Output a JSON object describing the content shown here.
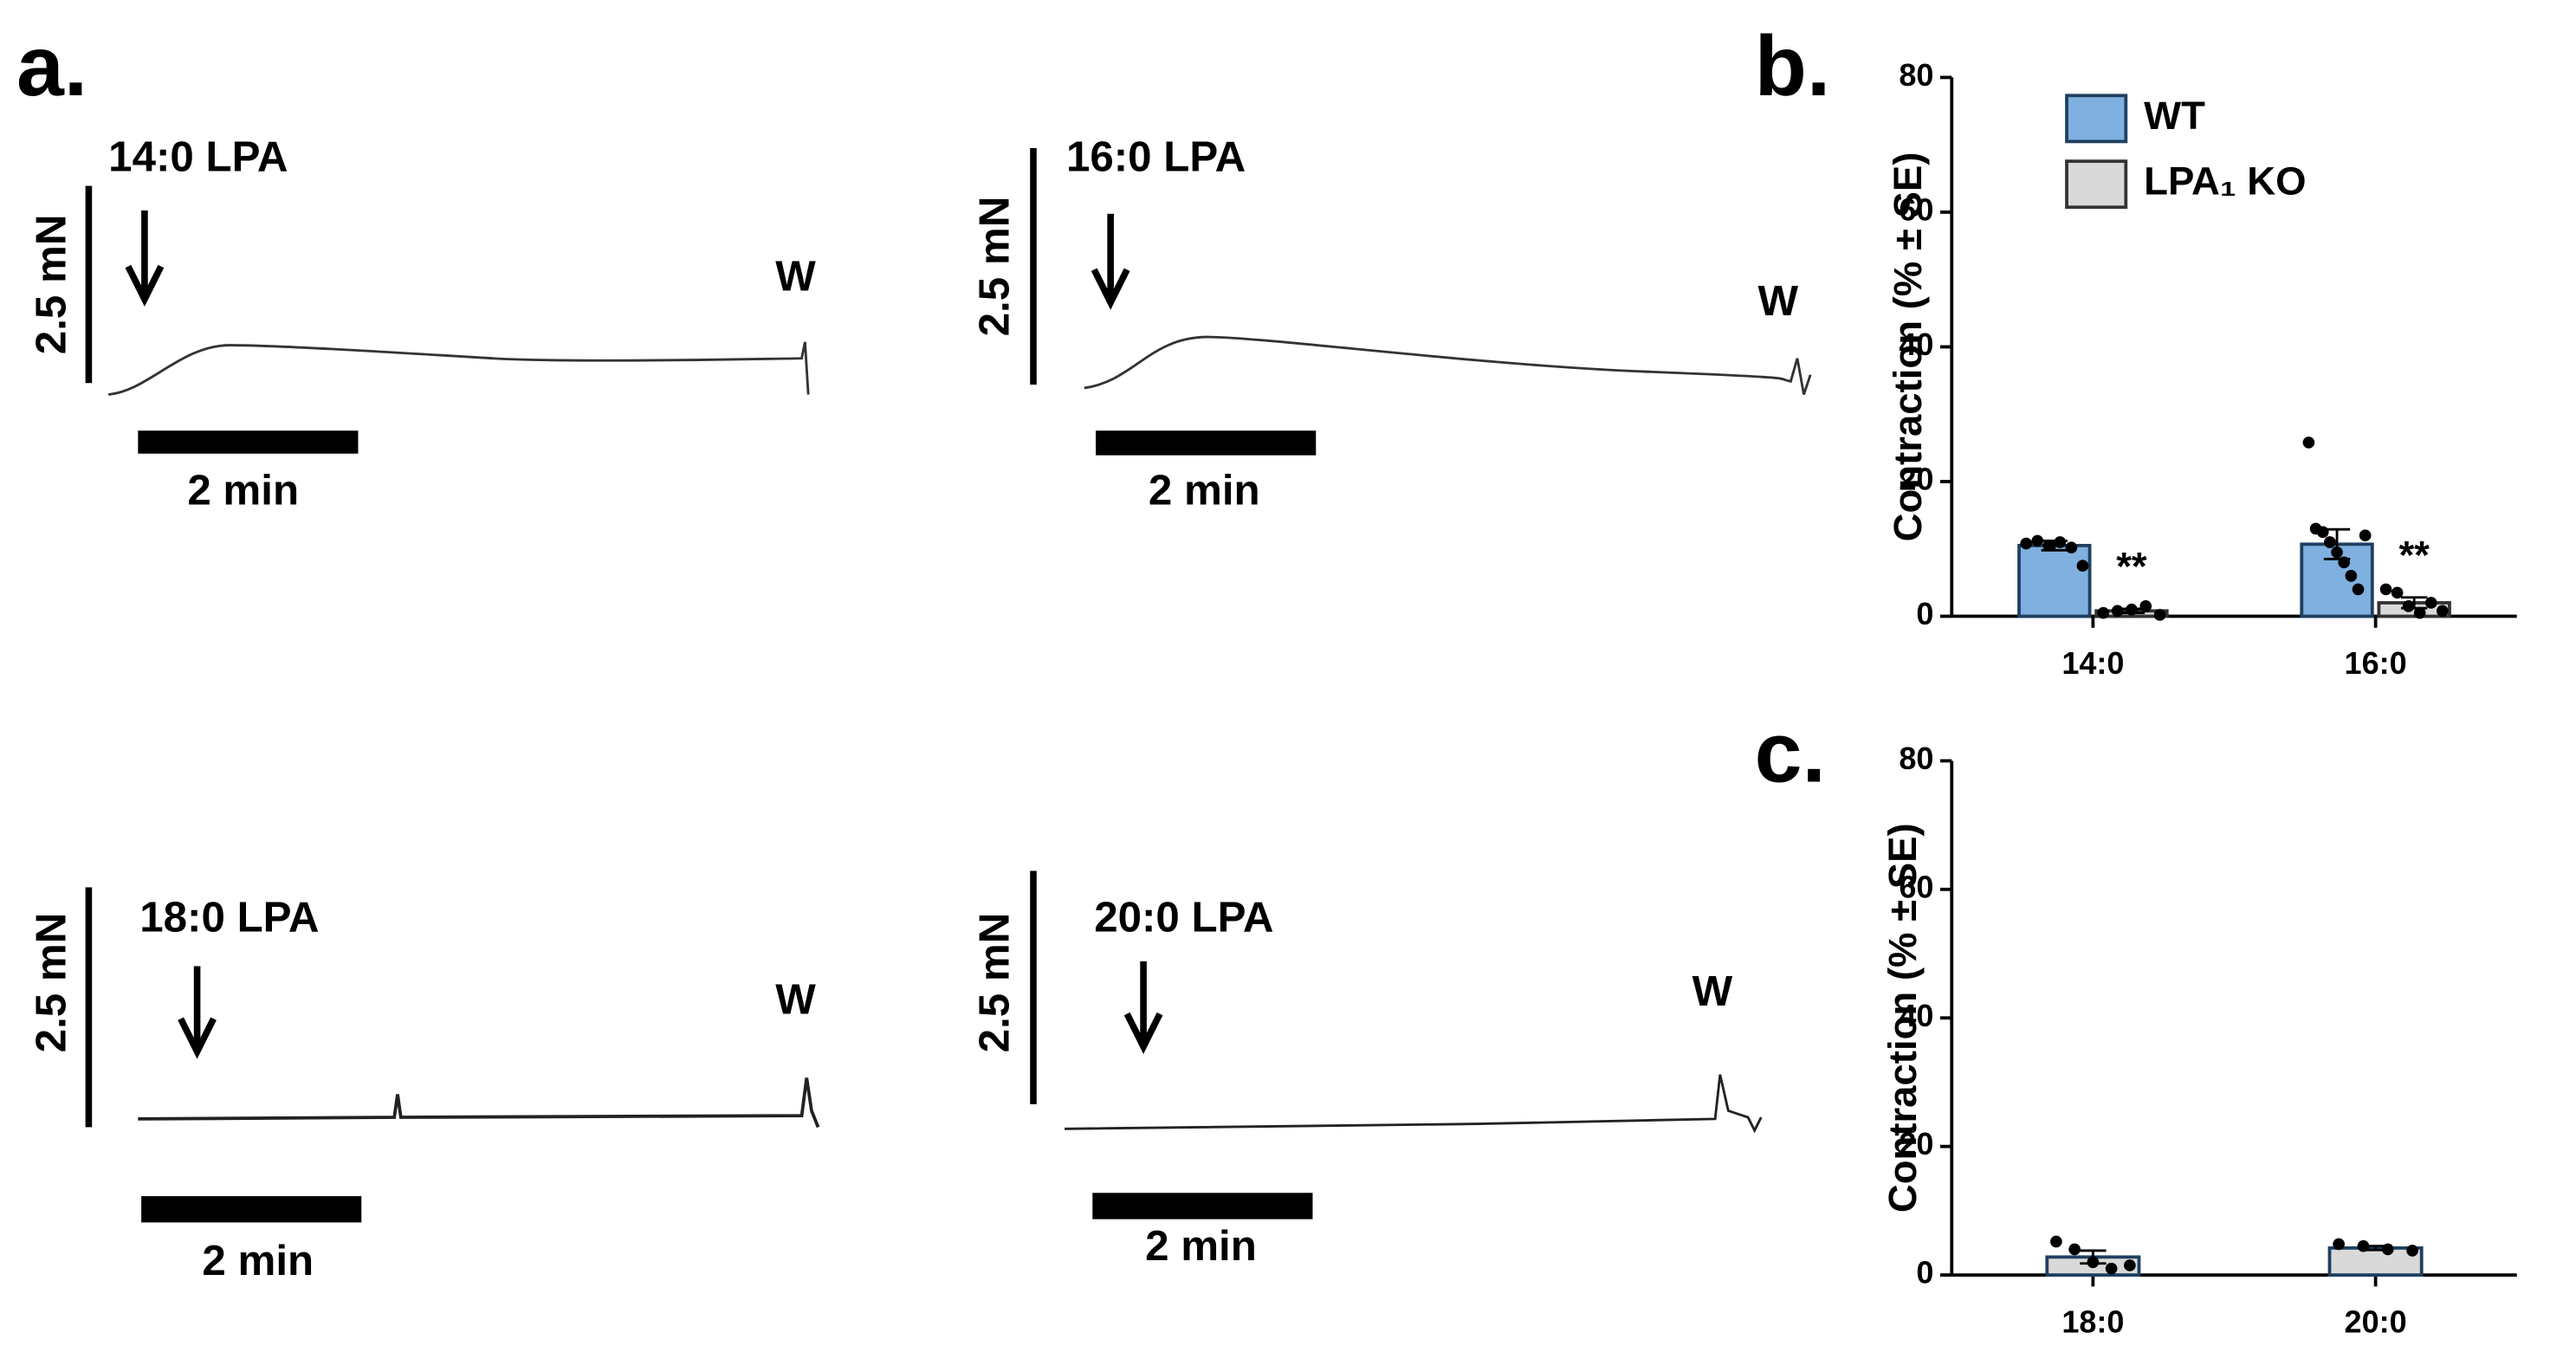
{
  "panel_a": {
    "label": "a.",
    "traces": [
      {
        "agent": "14:0 LPA",
        "force_scale": "2.5 mN",
        "washout": "W",
        "time_scale": "2 min"
      },
      {
        "agent": "16:0 LPA",
        "force_scale": "2.5 mN",
        "washout": "W",
        "time_scale": "2 min"
      },
      {
        "agent": "18:0 LPA",
        "force_scale": "2.5 mN",
        "washout": "W",
        "time_scale": "2 min"
      },
      {
        "agent": "20:0 LPA",
        "force_scale": "2.5 mN",
        "washout": "W",
        "time_scale": "2 min"
      }
    ]
  },
  "chart_data": [
    {
      "type": "bar",
      "panel_label": "b.",
      "y_label": "Contraction (% ± SE)",
      "categories": [
        "14:0",
        "16:0"
      ],
      "ylim": [
        0,
        80
      ],
      "yticks": [
        0,
        20,
        40,
        60,
        80
      ],
      "series": [
        {
          "name": "WT",
          "color": "#7fb0df",
          "values": [
            10.5,
            10.7
          ],
          "errors": [
            0.7,
            2.2
          ],
          "points": [
            [
              10.8,
              11.2,
              10.5,
              11.0,
              10.2,
              7.5
            ],
            [
              25.8,
              13.0,
              12.5,
              11.0,
              9.5,
              8.0,
              6.0,
              4.0,
              12.0
            ]
          ]
        },
        {
          "name": "LPA₁ KO",
          "color": "#d9d9d9",
          "values": [
            0.8,
            2.0
          ],
          "errors": [
            0.3,
            0.8
          ],
          "points": [
            [
              0.5,
              0.8,
              1.0,
              1.5,
              0.2
            ],
            [
              4.0,
              3.5,
              1.5,
              0.5,
              2.0,
              0.8
            ]
          ],
          "annotations": [
            "**",
            "**"
          ]
        }
      ]
    },
    {
      "type": "bar",
      "panel_label": "c.",
      "y_label": "Contraction (% ± SE)",
      "categories": [
        "18:0",
        "20:0"
      ],
      "ylim": [
        0,
        80
      ],
      "yticks": [
        0,
        20,
        40,
        60,
        80
      ],
      "series": [
        {
          "color": "#d9d9d9",
          "values": [
            2.8,
            4.2
          ],
          "errors": [
            1.0,
            0.3
          ],
          "points": [
            [
              5.2,
              4.0,
              2.0,
              1.0,
              1.5
            ],
            [
              4.8,
              4.5,
              4.0,
              3.8
            ]
          ]
        }
      ]
    }
  ]
}
